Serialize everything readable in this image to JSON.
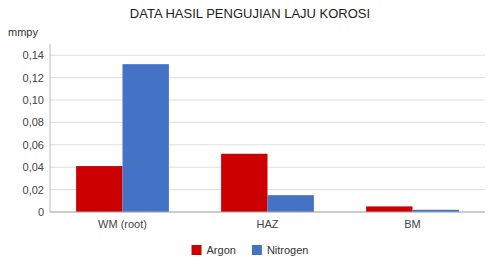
{
  "chart_data": {
    "type": "bar",
    "title": "DATA HASIL PENGUJIAN LAJU KOROSI",
    "ylabel": "mmpy",
    "categories": [
      "WM (root)",
      "HAZ",
      "BM"
    ],
    "series": [
      {
        "name": "Argon",
        "color": "#CC0000",
        "values": [
          0.041,
          0.052,
          0.005
        ]
      },
      {
        "name": "Nitrogen",
        "color": "#4472C4",
        "values": [
          0.132,
          0.015,
          0.002
        ]
      }
    ],
    "ylim": [
      0,
      0.15
    ],
    "yticks": [
      0,
      {
        "value": 0.02,
        "label": "0,02"
      },
      {
        "value": 0.04,
        "label": "0,04"
      },
      {
        "value": 0.06,
        "label": "0,06"
      },
      {
        "value": 0.08,
        "label": "0,08"
      },
      {
        "value": 0.1,
        "label": "0,10"
      },
      {
        "value": 0.12,
        "label": "0,12"
      },
      {
        "value": 0.14,
        "label": "0,14"
      }
    ],
    "grid": true,
    "legend": "bottom"
  }
}
